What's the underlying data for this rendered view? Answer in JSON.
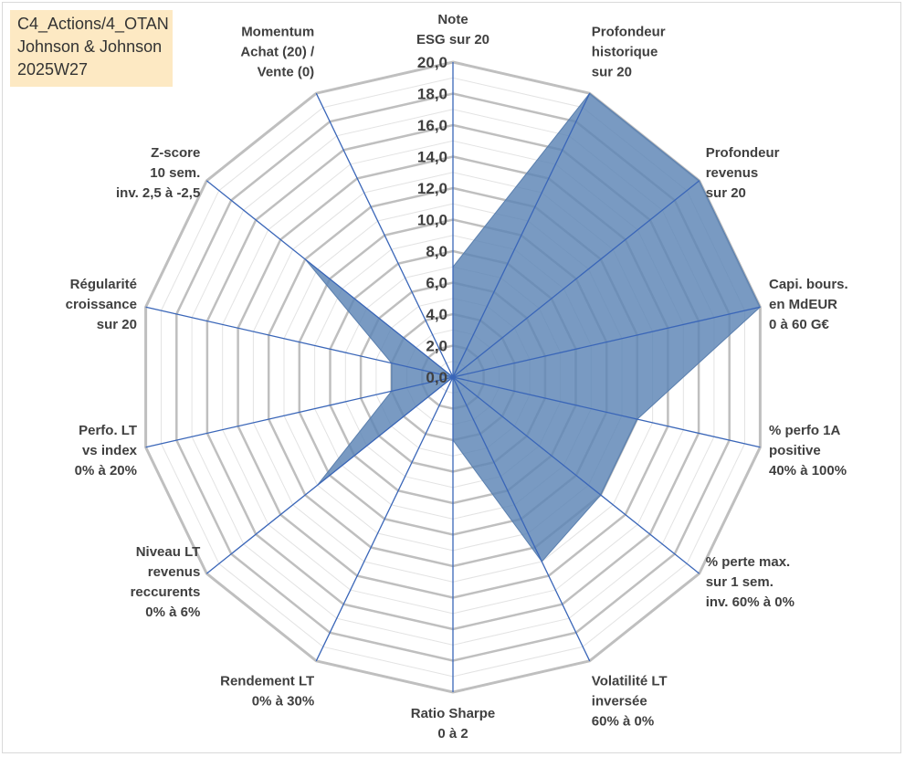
{
  "title_box": {
    "line1": "C4_Actions/4_OTAN",
    "line2": "Johnson & Johnson",
    "line3": "2025W27"
  },
  "chart_data": {
    "type": "radar",
    "title": "",
    "rlim": [
      0,
      20
    ],
    "ticks": [
      "0,0",
      "2,0",
      "4,0",
      "6,0",
      "8,0",
      "10,0",
      "12,0",
      "14,0",
      "16,0",
      "18,0",
      "20,0"
    ],
    "minor_step": 1,
    "grid": true,
    "axes": [
      {
        "label": [
          "Note",
          "ESG sur 20"
        ],
        "value": 7
      },
      {
        "label": [
          "Profondeur",
          "historique",
          "sur 20"
        ],
        "value": 20
      },
      {
        "label": [
          "Profondeur",
          "revenus",
          "sur 20"
        ],
        "value": 20
      },
      {
        "label": [
          "Capi. bours.",
          "en MdEUR",
          "0 à 60 G€"
        ],
        "value": 20
      },
      {
        "label": [
          "% perfo 1A",
          "positive",
          "40% à 100%"
        ],
        "value": 12
      },
      {
        "label": [
          "% perte max.",
          "sur 1 sem.",
          "inv. 60% à 0%"
        ],
        "value": 12
      },
      {
        "label": [
          "Volatilité LT",
          "inversée",
          "60% à 0%"
        ],
        "value": 13
      },
      {
        "label": [
          "Ratio Sharpe",
          "0 à 2"
        ],
        "value": 4
      },
      {
        "label": [
          "Rendement LT",
          "0% à 30%"
        ],
        "value": 0
      },
      {
        "label": [
          "Niveau LT",
          "revenus",
          "reccurents",
          "0% à 6%"
        ],
        "value": 11
      },
      {
        "label": [
          "Perfo. LT",
          "vs index",
          "0% à 20%"
        ],
        "value": 4
      },
      {
        "label": [
          "Régularité",
          "croissance",
          "sur 20"
        ],
        "value": 4
      },
      {
        "label": [
          "Z-score",
          "10 sem.",
          "inv. 2,5 à -2,5"
        ],
        "value": 12
      },
      {
        "label": [
          "Momentum",
          "Achat (20) /",
          "Vente (0)"
        ],
        "value": 0
      }
    ],
    "colors": {
      "fill": "#5b84b5",
      "spoke": "#3a66b8",
      "grid_major": "#bfbfbf",
      "grid_minor": "#e3e3e3"
    }
  }
}
